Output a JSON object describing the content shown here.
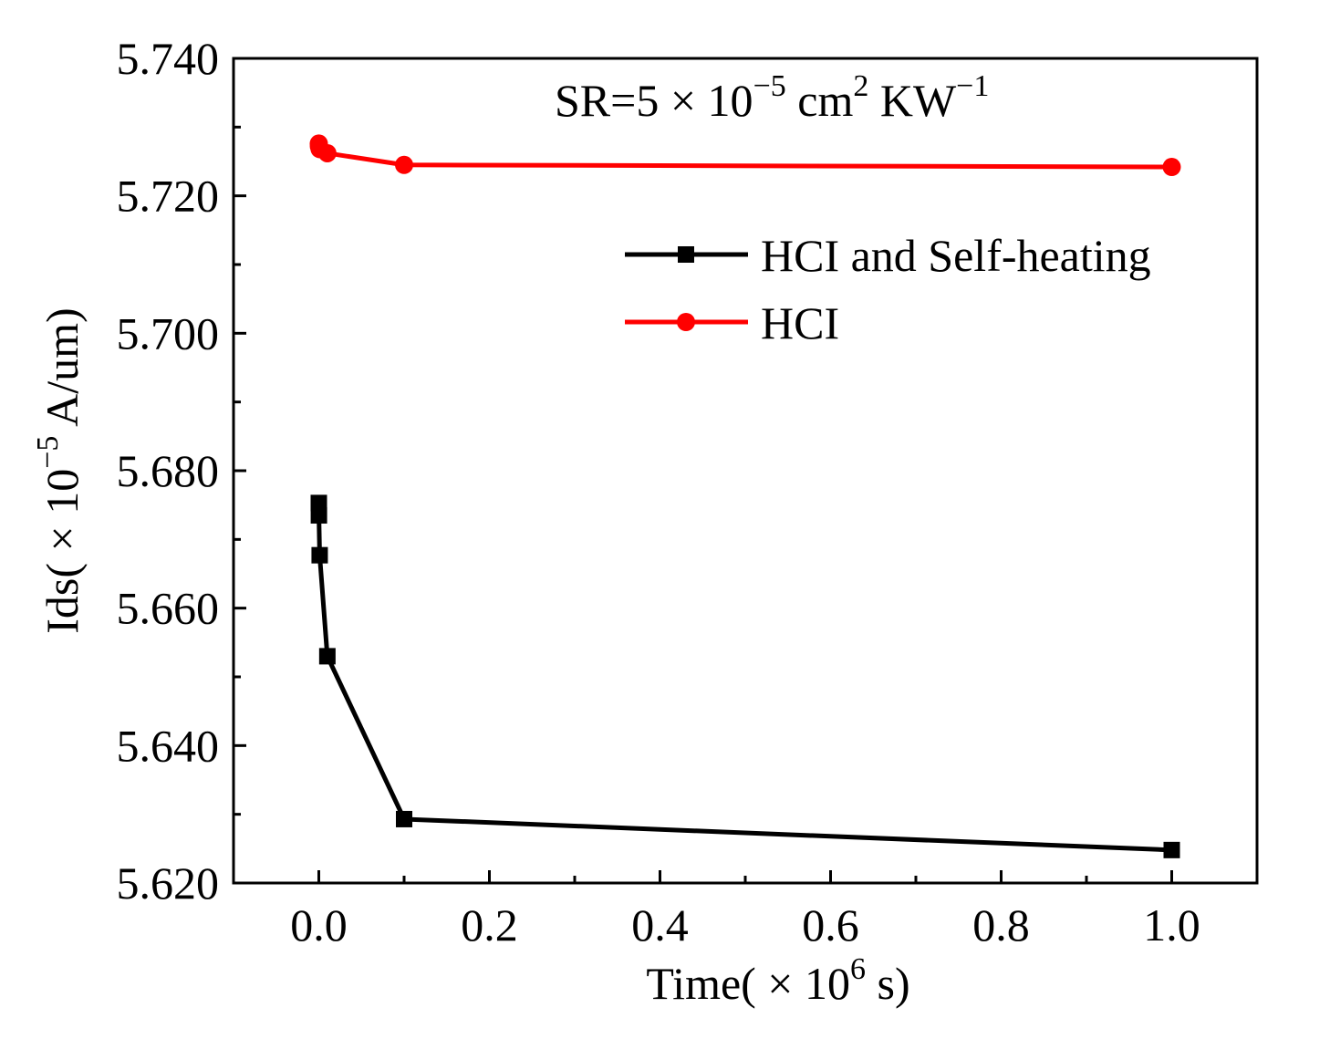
{
  "chart_data": {
    "type": "line",
    "title": "",
    "annotation": {
      "base": "SR=5 × 10",
      "exp1": "−5",
      "mid": " cm",
      "exp2": "2",
      "mid2": " KW",
      "exp3": "−1"
    },
    "xlabel": {
      "base": "Time( × 10",
      "exp": "6",
      "unit": " s)"
    },
    "ylabel": {
      "base": "Ids( × 10",
      "exp": "−5",
      "unit": " A/um)"
    },
    "xlim": [
      -0.1,
      1.1
    ],
    "ylim": [
      5.62,
      5.74
    ],
    "x_ticks": [
      0.0,
      0.2,
      0.4,
      0.6,
      0.8,
      1.0
    ],
    "x_tick_labels": [
      "0.0",
      "0.2",
      "0.4",
      "0.6",
      "0.8",
      "1.0"
    ],
    "y_ticks": [
      5.62,
      5.64,
      5.66,
      5.68,
      5.7,
      5.72,
      5.74
    ],
    "y_tick_labels": [
      "5.620",
      "5.640",
      "5.660",
      "5.680",
      "5.700",
      "5.720",
      "5.740"
    ],
    "grid": false,
    "legend_position": "upper-right",
    "series": [
      {
        "name": "HCI and Self-heating",
        "color": "#000000",
        "marker": "square",
        "x": [
          0.0,
          0.0001,
          0.001,
          0.01,
          0.1,
          1.0
        ],
        "y": [
          5.6753,
          5.6735,
          5.6677,
          5.653,
          5.6293,
          5.6248
        ]
      },
      {
        "name": "HCI",
        "color": "#ff0000",
        "marker": "circle",
        "x": [
          0.0,
          0.0001,
          0.001,
          0.01,
          0.1,
          1.0
        ],
        "y": [
          5.7276,
          5.7272,
          5.7268,
          5.7262,
          5.7245,
          5.7242
        ]
      }
    ]
  }
}
